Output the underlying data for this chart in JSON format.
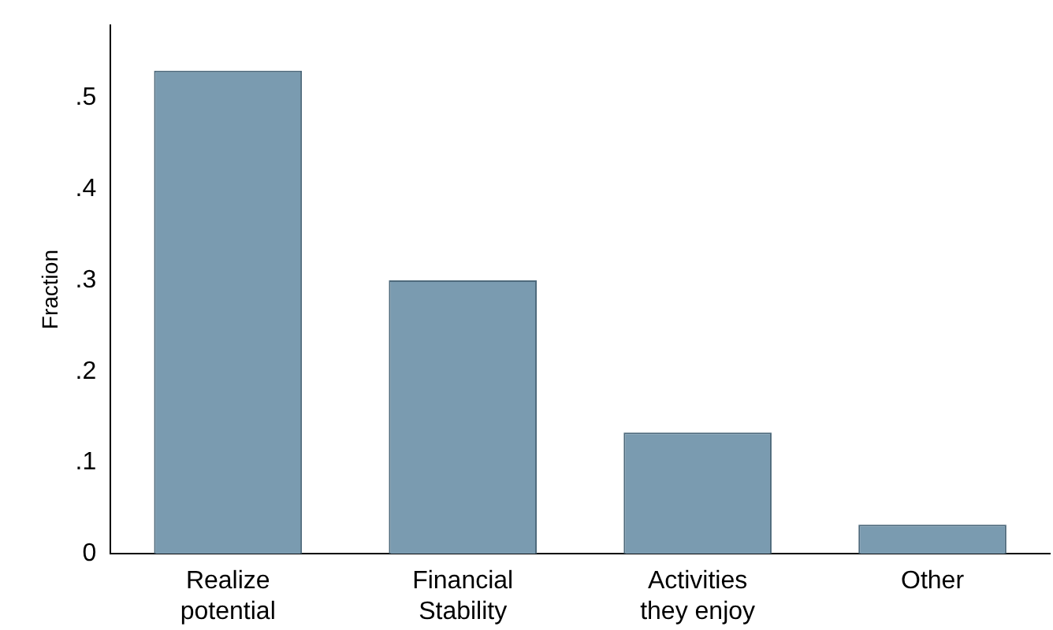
{
  "chart_data": {
    "type": "bar",
    "ylabel": "Fraction",
    "categories": [
      "Realize potential",
      "Financial Stability",
      "Activities they enjoy",
      "Other"
    ],
    "values": [
      0.53,
      0.3,
      0.133,
      0.032
    ],
    "color": "#7a9bb0",
    "ylim": [
      0,
      0.58
    ],
    "yticks": [
      0,
      {
        "value": 0.1,
        "label": ".1"
      },
      {
        "value": 0.2,
        "label": ".2"
      },
      {
        "value": 0.3,
        "label": ".3"
      },
      {
        "value": 0.4,
        "label": ".4"
      },
      {
        "value": 0.5,
        "label": ".5"
      }
    ],
    "grid": false,
    "legend": false
  }
}
